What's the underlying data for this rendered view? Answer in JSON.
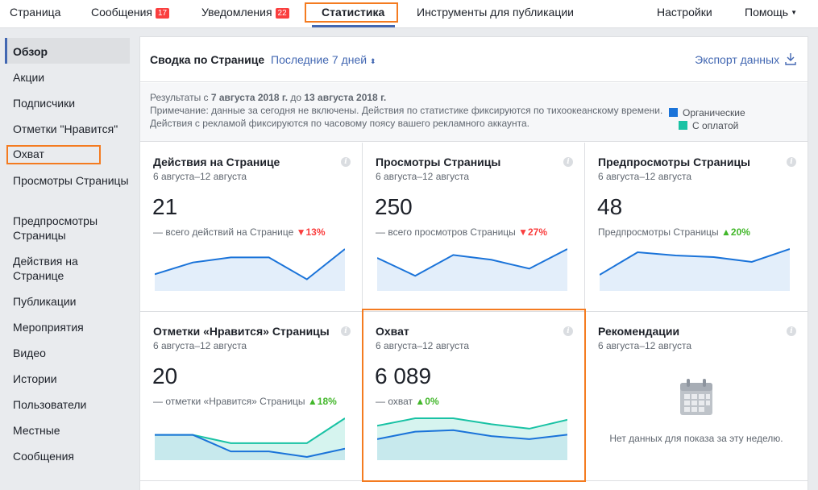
{
  "topnav": {
    "page": "Страница",
    "messages": "Сообщения",
    "messages_badge": "17",
    "notifications": "Уведомления",
    "notifications_badge": "22",
    "insights": "Статистика",
    "publishing_tools": "Инструменты для публикации",
    "settings": "Настройки",
    "help": "Помощь"
  },
  "sidebar": {
    "items": [
      {
        "label": "Обзор"
      },
      {
        "label": "Акции"
      },
      {
        "label": "Подписчики"
      },
      {
        "label": "Отметки \"Нравится\""
      },
      {
        "label": "Охват"
      },
      {
        "label": "Просмотры Страницы"
      },
      {
        "label": "Предпросмотры Страницы"
      },
      {
        "label": "Действия на Странице"
      },
      {
        "label": "Публикации"
      },
      {
        "label": "Мероприятия"
      },
      {
        "label": "Видео"
      },
      {
        "label": "Истории"
      },
      {
        "label": "Пользователи"
      },
      {
        "label": "Местные"
      },
      {
        "label": "Сообщения"
      }
    ]
  },
  "summary": {
    "title": "Сводка по Странице",
    "period": "Последние 7 дней",
    "export": "Экспорт данных",
    "results_prefix": "Результаты с ",
    "date_from": "7 августа 2018 г.",
    "results_mid": " до ",
    "date_to": "13 августа 2018 г.",
    "note1": "Примечание: данные за сегодня не включены. Действия по статистике фиксируются по тихоокеанскому времени.",
    "note2": "Действия с рекламой фиксируются по часовому поясу вашего рекламного аккаунта.",
    "legend_organic": "Органические",
    "legend_paid": "С оплатой",
    "colors": {
      "organic": "#1a73d9",
      "paid": "#19c2a4"
    }
  },
  "cards": [
    {
      "title": "Действия на Странице",
      "date": "6 августа–12 августа",
      "value": "21",
      "desc": "— всего действий на Странице",
      "change": "13%",
      "dir": "down",
      "organic": [
        8,
        15,
        18,
        18,
        5,
        23
      ],
      "paid": null
    },
    {
      "title": "Просмотры Страницы",
      "date": "6 августа–12 августа",
      "value": "250",
      "desc": "— всего просмотров Страницы",
      "change": "27%",
      "dir": "down",
      "organic": [
        50,
        20,
        55,
        47,
        32,
        65
      ],
      "paid": null
    },
    {
      "title": "Предпросмотры Страницы",
      "date": "6 августа–12 августа",
      "value": "48",
      "desc": "Предпросмотры Страницы",
      "change": "20%",
      "dir": "up",
      "organic": [
        4,
        11,
        10,
        9.5,
        8,
        12
      ],
      "paid": null
    },
    {
      "title": "Отметки «Нравится» Страницы",
      "date": "6 августа–12 августа",
      "value": "20",
      "desc": "— отметки «Нравится» Страницы",
      "change": "18%",
      "dir": "up",
      "organic": [
        4,
        4,
        1,
        1,
        0,
        1.5
      ],
      "paid": [
        4,
        4,
        2.5,
        2.5,
        2.5,
        7
      ]
    },
    {
      "title": "Охват",
      "date": "6 августа–12 августа",
      "value": "6 089",
      "desc": "— охват",
      "change": "0%",
      "dir": "up",
      "organic": [
        600,
        850,
        900,
        700,
        600,
        750
      ],
      "paid": [
        1050,
        1300,
        1300,
        1100,
        950,
        1250
      ]
    },
    {
      "title": "Рекомендации",
      "date": "6 августа–12 августа",
      "nodata": "Нет данных для показа за эту неделю."
    }
  ]
}
